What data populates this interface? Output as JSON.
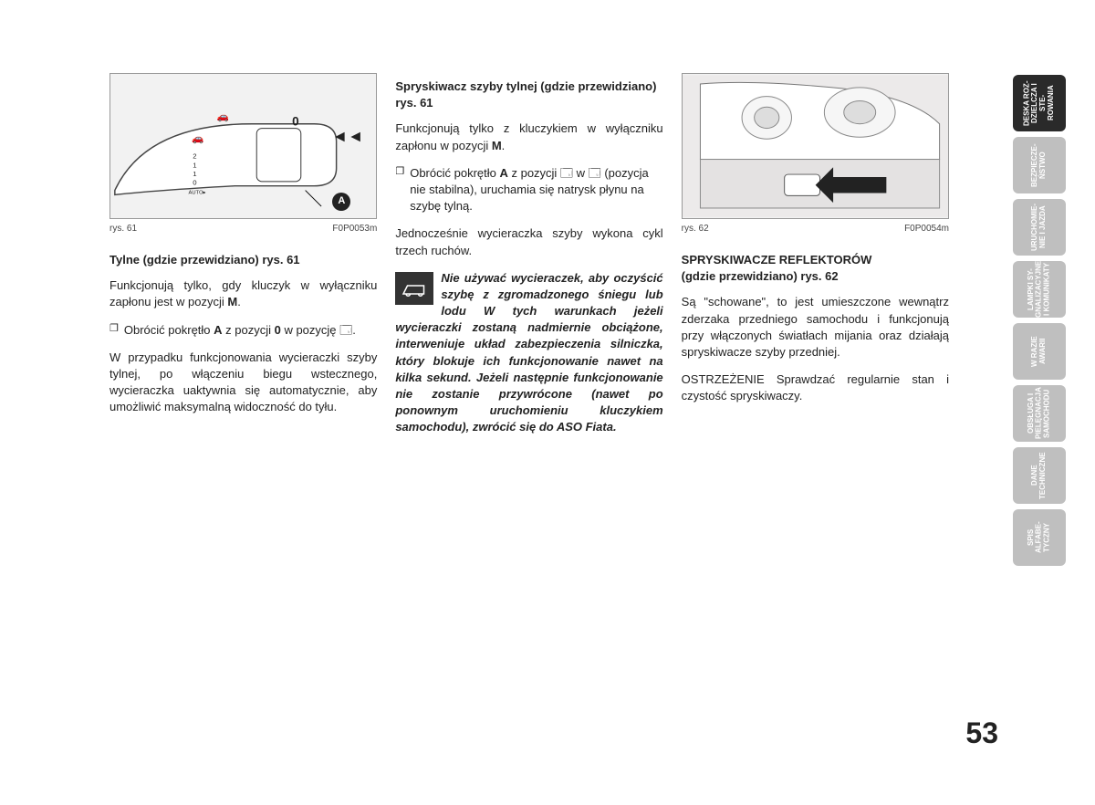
{
  "col1": {
    "fig": {
      "caption_left": "rys. 61",
      "caption_right": "F0P0053m",
      "label_A": "A"
    },
    "heading": "Tylne (gdzie przewidziano) rys. 61",
    "p1_a": "Funkcjonują tylko, gdy kluczyk w wyłączniku zapłonu jest w pozycji ",
    "p1_b": "M",
    "p1_c": ".",
    "bullet1_a": "Obrócić pokrętło ",
    "bullet1_b": "A",
    "bullet1_c": " z pozycji ",
    "bullet1_d": "0",
    "bullet1_e": " w pozycję 🗔.",
    "p2": "W przypadku funkcjonowania wycieraczki szyby tylnej, po włączeniu biegu wstecznego, wycieraczka uaktywnia się automatycznie, aby umożliwić maksymalną widoczność do tyłu."
  },
  "col2": {
    "heading": "Spryskiwacz szyby tylnej (gdzie przewidziano) rys. 61",
    "p1_a": "Funkcjonują tylko z kluczykiem w wyłączniku zapłonu w pozycji ",
    "p1_b": "M",
    "p1_c": ".",
    "bullet1_a": "Obrócić pokrętło ",
    "bullet1_b": "A",
    "bullet1_c": " z pozycji 🗔 w 🗔 (pozycja nie stabilna), uruchamia się natrysk płynu na szybę tylną.",
    "p2": "Jednocześnie wycieraczka szyby wykona cykl trzech ruchów.",
    "warning": "Nie używać wycieraczek, aby oczyścić szybę z zgromadzonego śniegu lub lodu W tych warunkach jeżeli wycieraczki zostaną nadmiernie obciążone, interweniuje układ zabezpieczenia silniczka, który blokuje ich funkcjonowanie nawet na kilka sekund. Jeżeli następnie funkcjonowanie nie zostanie przywrócone (nawet po ponownym uruchomieniu kluczykiem samochodu), zwrócić się do ASO Fiata."
  },
  "col3": {
    "fig": {
      "caption_left": "rys. 62",
      "caption_right": "F0P0054m"
    },
    "heading_l1": "SPRYSKIWACZE REFLEKTORÓW",
    "heading_l2": "(gdzie przewidziano) rys. 62",
    "p1": "Są \"schowane\", to jest umieszczone wewnątrz zderzaka przedniego samochodu i funkcjonują przy włączonych światłach mijania oraz działają spryskiwacze szyby przedniej.",
    "p2": "OSTRZEŻENIE Sprawdzać regularnie stan i czystość spryskiwaczy."
  },
  "tabs": [
    {
      "label": "DESKA ROZ-\nDZIELCZA I STE-\nROWANIA",
      "active": true
    },
    {
      "label": "BEZPIECZE-\nŃSTWO",
      "active": false
    },
    {
      "label": "URUCHOMIE-\nNIE I JAZDA",
      "active": false
    },
    {
      "label": "LAMPKI SY-\nGNALIZACYJNE\nI KOMUNIKATY",
      "active": false
    },
    {
      "label": "W RAZIE\nAWARII",
      "active": false
    },
    {
      "label": "OBSŁUGA I\nPIELĘGNACJA\nSAMOCHODU",
      "active": false
    },
    {
      "label": "DANE\nTECHNICZNE",
      "active": false
    },
    {
      "label": "SPIS ALFABE-\nTYCZNY",
      "active": false
    }
  ],
  "pagenum": "53",
  "colors": {
    "tab_bg": "#bfbfbf",
    "tab_active": "#2a2a2a",
    "text": "#222"
  }
}
